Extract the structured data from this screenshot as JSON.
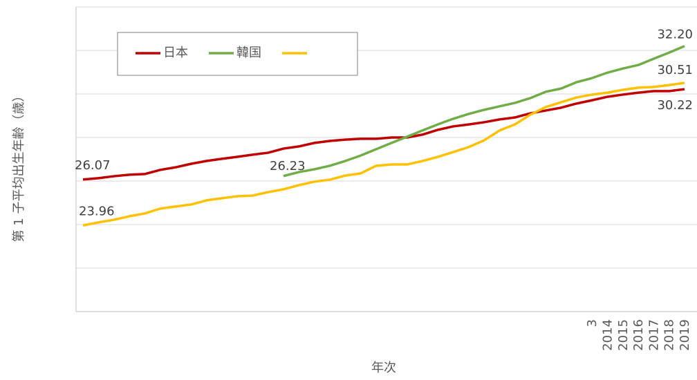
{
  "chart_data": {
    "type": "line",
    "y_label": "第 1 子平均出生年齢（歳）",
    "x_label": "年次",
    "categories": [
      null,
      null,
      null,
      null,
      null,
      null,
      null,
      null,
      null,
      null,
      null,
      null,
      null,
      null,
      null,
      null,
      null,
      null,
      null,
      null,
      null,
      null,
      null,
      null,
      null,
      null,
      null,
      null,
      null,
      null,
      null,
      null,
      null,
      "3",
      "2014",
      "2015",
      "2016",
      "2017",
      "2018",
      "2019"
    ],
    "ylim": [
      20,
      34
    ],
    "yticks": [
      20,
      22,
      24,
      26,
      28,
      30,
      32,
      34
    ],
    "grid": true,
    "series": [
      {
        "name": "日本",
        "color": "#c00000",
        "values": [
          26.07,
          26.13,
          26.22,
          26.29,
          26.32,
          26.51,
          26.63,
          26.79,
          26.92,
          27.02,
          27.11,
          27.21,
          27.3,
          27.49,
          27.59,
          27.75,
          27.84,
          27.9,
          27.94,
          27.94,
          28.0,
          28.0,
          28.13,
          28.35,
          28.51,
          28.6,
          28.7,
          28.83,
          28.92,
          29.11,
          29.24,
          29.37,
          29.56,
          29.71,
          29.87,
          29.97,
          30.06,
          30.13,
          30.13,
          30.22
        ],
        "value_labels": [
          "26.07",
          null,
          null,
          null,
          null,
          null,
          null,
          null,
          null,
          null,
          null,
          null,
          null,
          null,
          null,
          null,
          null,
          null,
          null,
          null,
          null,
          null,
          null,
          null,
          null,
          null,
          null,
          null,
          null,
          null,
          null,
          null,
          null,
          null,
          null,
          null,
          null,
          null,
          null,
          "30.22"
        ]
      },
      {
        "name": "韓国",
        "color": "#70ad47",
        "values": [
          null,
          null,
          null,
          null,
          null,
          null,
          null,
          null,
          null,
          null,
          null,
          null,
          null,
          26.23,
          26.41,
          26.54,
          26.7,
          26.92,
          27.17,
          27.46,
          27.75,
          28.03,
          28.32,
          28.6,
          28.86,
          29.08,
          29.27,
          29.43,
          29.59,
          29.81,
          30.1,
          30.25,
          30.54,
          30.73,
          30.98,
          31.17,
          31.33,
          31.62,
          31.9,
          32.2
        ],
        "value_labels": [
          null,
          null,
          null,
          null,
          null,
          null,
          null,
          null,
          null,
          null,
          null,
          null,
          null,
          "26.23",
          null,
          null,
          null,
          null,
          null,
          null,
          null,
          null,
          null,
          null,
          null,
          null,
          null,
          null,
          null,
          null,
          null,
          null,
          null,
          null,
          null,
          null,
          null,
          null,
          null,
          "32.20"
        ]
      },
      {
        "color": "#ffc000",
        "values": [
          23.96,
          24.1,
          24.22,
          24.38,
          24.51,
          24.73,
          24.83,
          24.92,
          25.11,
          25.21,
          25.3,
          25.33,
          25.49,
          25.62,
          25.81,
          25.97,
          26.06,
          26.25,
          26.35,
          26.7,
          26.76,
          26.76,
          26.92,
          27.11,
          27.33,
          27.56,
          27.87,
          28.32,
          28.6,
          29.05,
          29.4,
          29.62,
          29.84,
          29.97,
          30.06,
          30.19,
          30.29,
          30.32,
          30.41,
          30.51
        ],
        "value_labels": [
          "23.96",
          null,
          null,
          null,
          null,
          null,
          null,
          null,
          null,
          null,
          null,
          null,
          null,
          null,
          null,
          null,
          null,
          null,
          null,
          null,
          null,
          null,
          null,
          null,
          null,
          null,
          null,
          null,
          null,
          null,
          null,
          null,
          null,
          null,
          null,
          null,
          null,
          null,
          null,
          "30.51"
        ]
      }
    ]
  }
}
